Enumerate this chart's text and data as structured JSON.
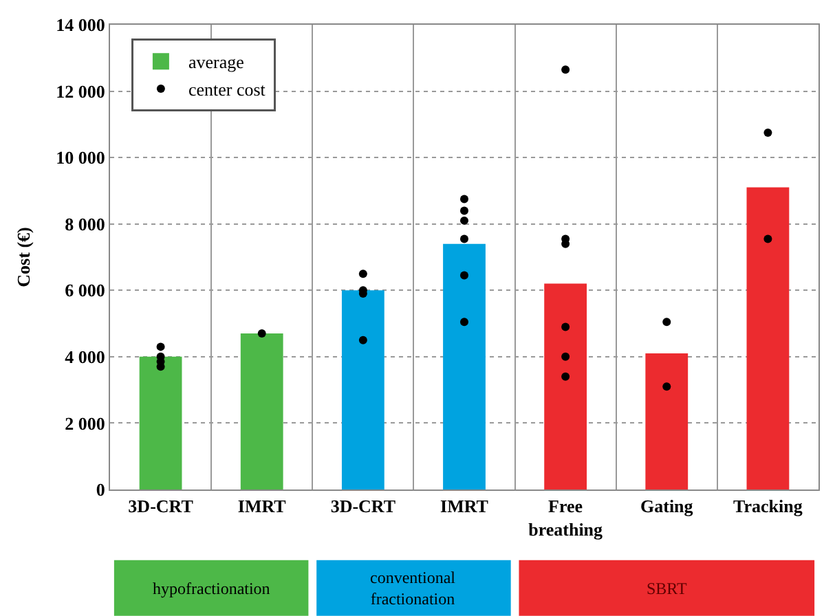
{
  "chart_data": {
    "type": "bar",
    "ylabel": "Cost (€)",
    "categories": [
      "3D-CRT",
      "IMRT",
      "3D-CRT",
      "IMRT",
      "Free breathing",
      "Gating",
      "Tracking"
    ],
    "series": [
      {
        "name": "average",
        "values": [
          4000,
          4700,
          6000,
          7400,
          6200,
          4100,
          9100
        ],
        "colors": [
          "#4db848",
          "#4db848",
          "#00a3e0",
          "#00a3e0",
          "#ec2b2f",
          "#ec2b2f",
          "#ec2b2f"
        ]
      },
      {
        "name": "center cost",
        "type": "scatter",
        "color": "#000000",
        "values": [
          4300,
          4700,
          6500,
          8750,
          12650,
          5050,
          10750
        ]
      },
      {
        "type": "scatter",
        "color": "#000000",
        "values": [
          4000,
          null,
          6000,
          8400,
          7550,
          3100,
          7550
        ]
      },
      {
        "type": "scatter",
        "color": "#000000",
        "values": [
          3850,
          null,
          5900,
          8100,
          7400,
          null,
          null
        ]
      },
      {
        "type": "scatter",
        "color": "#000000",
        "values": [
          3700,
          null,
          4500,
          7550,
          4900,
          null,
          null
        ]
      },
      {
        "type": "scatter",
        "color": "#000000",
        "values": [
          null,
          null,
          null,
          6450,
          4000,
          null,
          null
        ]
      },
      {
        "type": "scatter",
        "color": "#000000",
        "values": [
          null,
          null,
          null,
          5050,
          3400,
          null,
          null
        ]
      }
    ],
    "annotations": [
      "hypofractionation",
      "conventional fractionation",
      "SBRT"
    ],
    "ylim": [
      0,
      14000
    ],
    "yticks": [
      0,
      {
        "value": 2000,
        "label": "2 000"
      },
      {
        "value": 4000,
        "label": "4 000"
      },
      {
        "value": 6000,
        "label": "6 000"
      },
      {
        "value": 8000,
        "label": "8 000"
      },
      {
        "value": 10000,
        "label": "10 000"
      },
      {
        "value": 12000,
        "label": "12 000"
      },
      {
        "value": 14000,
        "label": "14 000"
      }
    ],
    "grid": true,
    "legend": "top left",
    "marker": "circle"
  }
}
